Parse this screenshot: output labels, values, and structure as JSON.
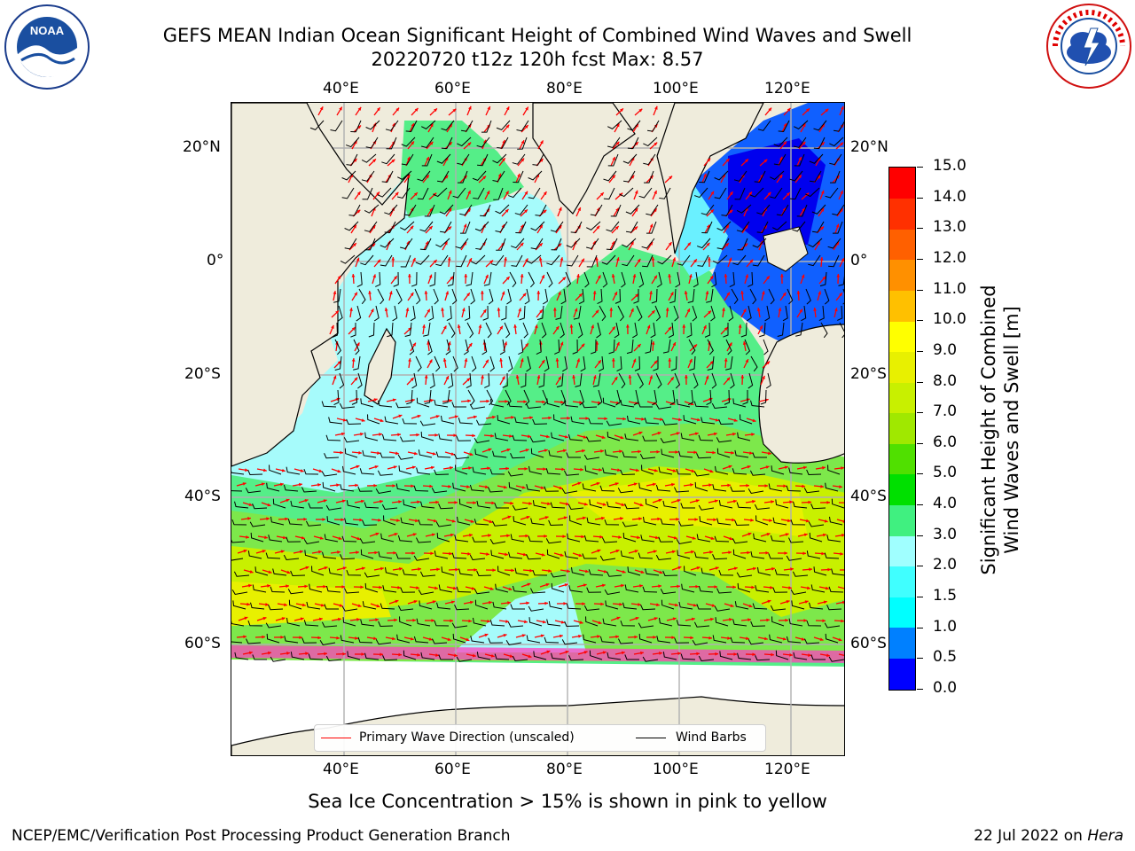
{
  "header": {
    "title_line1": "GEFS MEAN Indian Ocean Significant Height of Combined Wind Waves and Swell",
    "title_line2": "20220720 t12z 120h fcst   Max: 8.57"
  },
  "logos": {
    "noaa_text": "NOAA",
    "noaa_ring_text": "NATIONAL OCEANIC AND ATMOSPHERIC ADMINISTRATION · U.S. DEPARTMENT OF COMMERCE",
    "nws_ring_text": "NATIONAL WEATHER SERVICE"
  },
  "map": {
    "lon_labels_top": [
      "40°E",
      "60°E",
      "80°E",
      "100°E",
      "120°E"
    ],
    "lon_labels_bottom": [
      "40°E",
      "60°E",
      "80°E",
      "100°E",
      "120°E"
    ],
    "lat_labels_left": [
      "20°N",
      "0°",
      "20°S",
      "40°S",
      "60°S"
    ],
    "lat_labels_right": [
      "20°N",
      "0°",
      "20°S",
      "40°S",
      "60°S"
    ],
    "legend": {
      "wave_direction_label": "Primary Wave Direction (unscaled)",
      "wave_direction_color": "#ff0000",
      "wind_barbs_label": "Wind Barbs",
      "wind_barbs_color": "#000000"
    }
  },
  "colorbar": {
    "title_line1": "Significant Height of Combined",
    "title_line2": "Wind Waves and Swell [m]",
    "tick_labels": [
      "0.0",
      "0.5",
      "1.0",
      "1.5",
      "2.0",
      "3.0",
      "4.0",
      "5.0",
      "6.0",
      "7.0",
      "8.0",
      "9.0",
      "10.0",
      "11.0",
      "12.0",
      "13.0",
      "14.0",
      "15.0"
    ],
    "colors": [
      "#0000ff",
      "#0080ff",
      "#00ffff",
      "#40ffff",
      "#a0ffff",
      "#40f080",
      "#00e000",
      "#50e000",
      "#a0e800",
      "#c8f000",
      "#e8f000",
      "#ffff00",
      "#ffc000",
      "#ff9000",
      "#ff6000",
      "#ff3000",
      "#ff0000"
    ]
  },
  "footnote": "Sea Ice Concentration > 15% is shown in pink to yellow",
  "footer": {
    "credit": "NCEP/EMC/Verification Post Processing Product Generation Branch",
    "date_prefix": "22 Jul 2022 on ",
    "machine": "Hera"
  }
}
